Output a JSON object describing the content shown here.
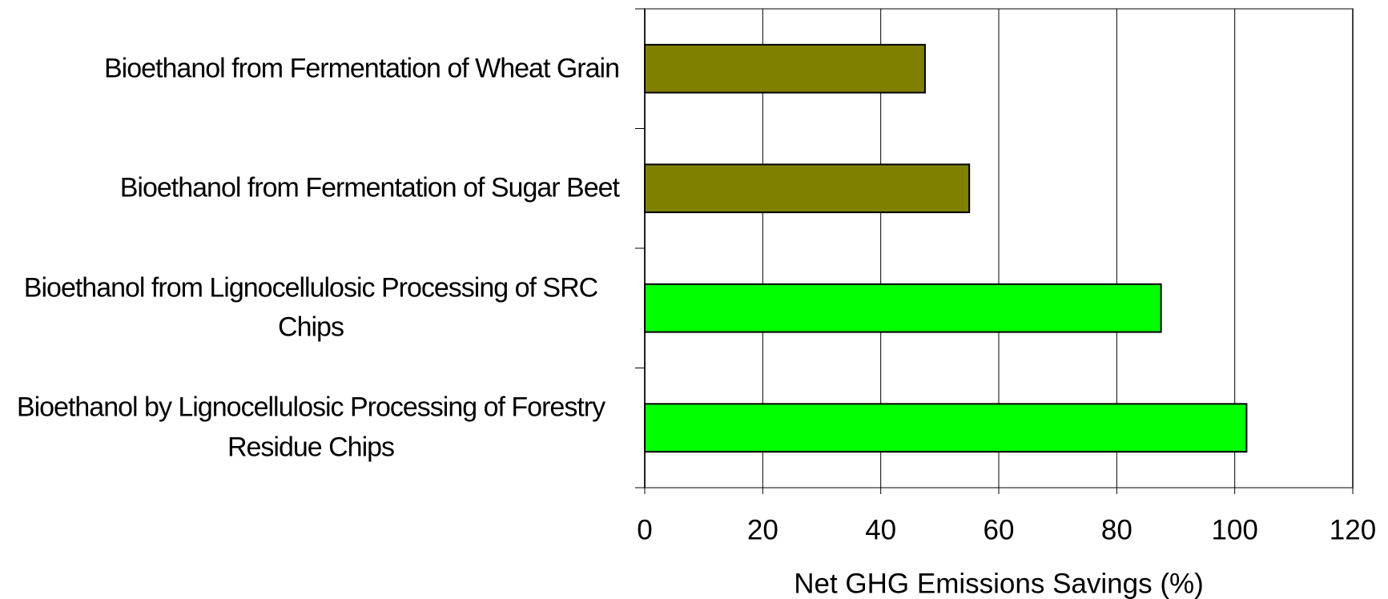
{
  "chart_data": {
    "type": "hbar",
    "categories": [
      "Bioethanol from Fermentation of Wheat Grain",
      "Bioethanol from Fermentation of Sugar Beet",
      "Bioethanol from Lignocellulosic Processing of SRC Chips",
      "Bioethanol by Lignocellulosic Processing of Forestry Residue Chips"
    ],
    "values": [
      47.5,
      55,
      87.5,
      102
    ],
    "colors": [
      "#808000",
      "#808000",
      "#00ff00",
      "#00ff00"
    ],
    "xlabel": "Net GHG Emissions Savings (%)",
    "xlim": [
      0,
      120
    ],
    "xticks": [
      0,
      20,
      40,
      60,
      80,
      100,
      120
    ],
    "grid": true
  }
}
